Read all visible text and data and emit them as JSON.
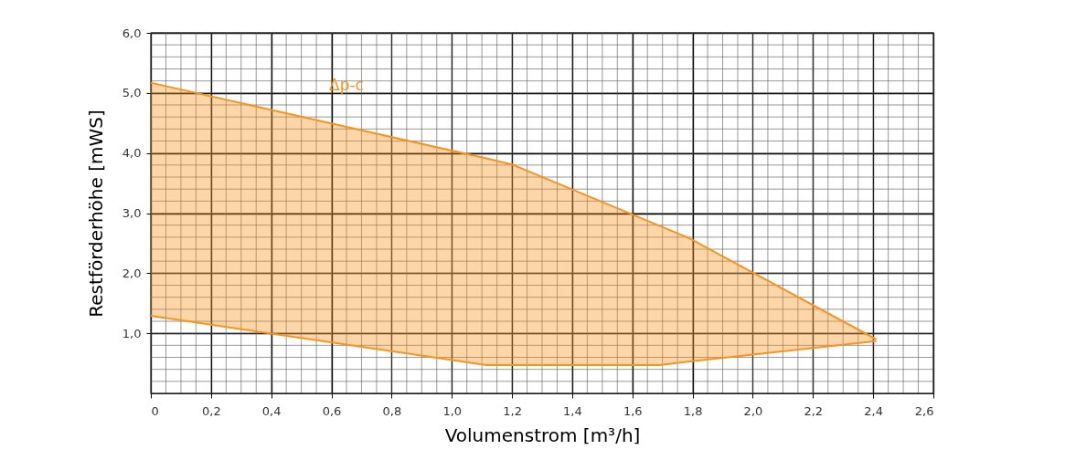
{
  "chart_data": {
    "type": "line",
    "xlabel": "Volumenstrom [m³/h]",
    "ylabel": "Restförderhöhe [mWS]",
    "x": [
      0,
      1.115,
      1.2,
      1.69,
      1.79,
      2.41
    ],
    "series": [
      {
        "color": "#f7941d",
        "values": [
          5.17,
          3.91,
          3.81,
          2.79,
          2.58,
          0.9
        ],
        "lower": [
          1.29,
          0.47,
          0.47,
          0.47,
          0.53,
          0.87
        ],
        "upper": [
          5.17,
          3.91,
          3.81,
          2.79,
          2.58,
          0.9
        ]
      },
      {
        "color": "#f7941d",
        "values": [
          1.29,
          0.47,
          0.47,
          0.47,
          0.53,
          0.87
        ]
      }
    ],
    "xlim": [
      0,
      2.6
    ],
    "ylim": [
      0,
      6
    ],
    "xticks": [
      0,
      {
        "value": 0.2,
        "label": "0,2"
      },
      {
        "value": 0.4,
        "label": "0,4"
      },
      {
        "value": 0.6,
        "label": "0,6"
      },
      {
        "value": 0.8,
        "label": "0,8"
      },
      {
        "value": 1.0,
        "label": "1,0"
      },
      {
        "value": 1.2,
        "label": "1,2"
      },
      {
        "value": 1.4,
        "label": "1,4"
      },
      {
        "value": 1.6,
        "label": "1,6"
      },
      {
        "value": 1.8,
        "label": "1,8"
      },
      {
        "value": 2.0,
        "label": "2,0"
      },
      {
        "value": 2.2,
        "label": "2,2"
      },
      {
        "value": 2.4,
        "label": "2,4"
      },
      {
        "value": 2.6,
        "label": "2,6"
      }
    ],
    "yticks": [
      {
        "value": 1,
        "label": "1,0"
      },
      {
        "value": 2,
        "label": "2,0"
      },
      {
        "value": 3,
        "label": "3,0"
      },
      {
        "value": 4,
        "label": "4,0"
      },
      {
        "value": 5,
        "label": "5,0"
      },
      {
        "value": 6,
        "label": "6,0"
      }
    ],
    "grid": true,
    "annotations": [
      "Δp-c"
    ]
  }
}
